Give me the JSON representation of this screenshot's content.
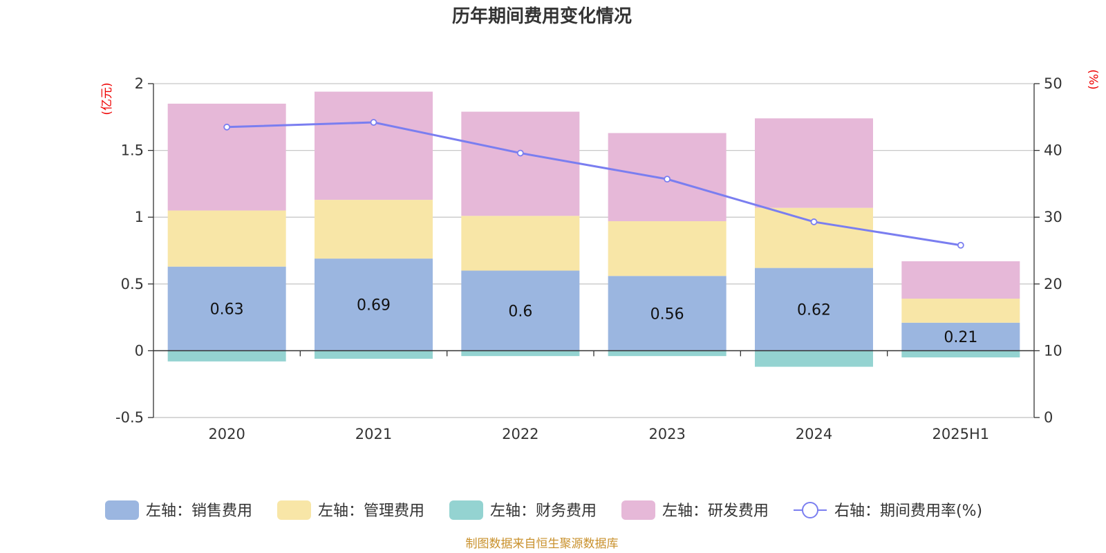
{
  "colors": {
    "sales": "#9bb6e0",
    "admin": "#f8e6a7",
    "finance": "#94d3d1",
    "rnd": "#e6b8d8",
    "rate_line": "#7a7ef0",
    "unit_text": "#ee0000",
    "source_text": "#c9912d"
  },
  "source": "制图数据来自恒生聚源数据库",
  "chart_data": {
    "type": "bar",
    "stacked": true,
    "title": "历年期间费用变化情况",
    "categories": [
      "2020",
      "2021",
      "2022",
      "2023",
      "2024",
      "2025H1"
    ],
    "y_left": {
      "unit": "(亿元)",
      "ylim": [
        -0.5,
        2
      ],
      "ticks": [
        "2",
        "1.5",
        "1",
        "0.5",
        "0",
        "-0.5"
      ]
    },
    "y_right": {
      "unit": "(%)",
      "ylim": [
        0,
        50
      ],
      "ticks": [
        "50",
        "40",
        "30",
        "20",
        "10",
        "0"
      ]
    },
    "grid": true,
    "legend_position": "bottom",
    "series": [
      {
        "name": "左轴：销售费用",
        "key": "sales",
        "axis": "left",
        "values": [
          0.63,
          0.69,
          0.6,
          0.56,
          0.62,
          0.21
        ],
        "labels": [
          "0.63",
          "0.69",
          "0.6",
          "0.56",
          "0.62",
          "0.21"
        ]
      },
      {
        "name": "左轴：管理费用",
        "key": "admin",
        "axis": "left",
        "values": [
          0.42,
          0.44,
          0.41,
          0.41,
          0.45,
          0.18
        ]
      },
      {
        "name": "左轴：财务费用",
        "key": "finance",
        "axis": "left",
        "values": [
          -0.08,
          -0.06,
          -0.04,
          -0.04,
          -0.12,
          -0.05
        ]
      },
      {
        "name": "左轴：研发费用",
        "key": "rnd",
        "axis": "left",
        "values": [
          0.8,
          0.81,
          0.78,
          0.66,
          0.67,
          0.28
        ]
      },
      {
        "name": "右轴：期间费用率(%)",
        "key": "rate",
        "axis": "right",
        "type": "line",
        "values": [
          43.5,
          44.2,
          39.6,
          35.7,
          29.3,
          25.8
        ]
      }
    ]
  }
}
